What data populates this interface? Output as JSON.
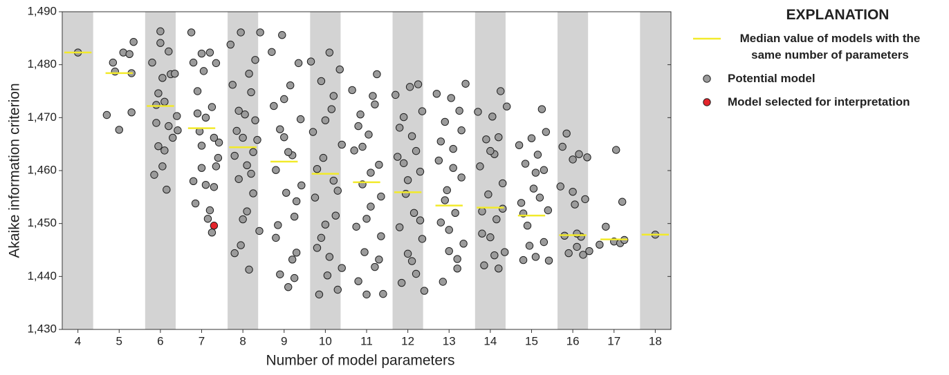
{
  "chart_data": {
    "type": "scatter",
    "xlabel": "Number of model parameters",
    "ylabel": "Akaike information criterion",
    "xlim": [
      3.62,
      18.38
    ],
    "ylim": [
      1430,
      1490
    ],
    "xticks": [
      4,
      5,
      6,
      7,
      8,
      9,
      10,
      11,
      12,
      13,
      14,
      15,
      16,
      17,
      18
    ],
    "yticks": [
      {
        "value": 1430,
        "label": "1,430"
      },
      {
        "value": 1440,
        "label": "1,440"
      },
      {
        "value": 1450,
        "label": "1,450"
      },
      {
        "value": 1460,
        "label": "1,460"
      },
      {
        "value": 1470,
        "label": "1,470"
      },
      {
        "value": 1480,
        "label": "1,480"
      },
      {
        "value": 1490,
        "label": "1,490"
      }
    ],
    "band_color": "#d3d3d3",
    "legend_title": "EXPLANATION",
    "legend": "right",
    "series": [
      {
        "name": "Median value of models with the same number of parameters",
        "marker": "line",
        "color": "#f2ea2a",
        "x": [
          4,
          5,
          6,
          7,
          8,
          9,
          10,
          11,
          12,
          13,
          14,
          15,
          16,
          17,
          18
        ],
        "values": [
          1482.3,
          1478.4,
          1472.2,
          1468,
          1464.4,
          1461.7,
          1459.4,
          1457.8,
          1455.9,
          1453.4,
          1453,
          1451.5,
          1447.8,
          1447,
          1447.9
        ]
      },
      {
        "name": "Potential model",
        "marker": "circle",
        "color": "#9b9b9b",
        "x": [
          4.0,
          4.7,
          4.85,
          4.9,
          5.0,
          5.1,
          5.25,
          5.3,
          5.35,
          5.3,
          5.8,
          5.85,
          5.9,
          5.95,
          6.0,
          6.05,
          6.1,
          6.15,
          6.2,
          6.25,
          6.3,
          6.35,
          6.4,
          6.42,
          5.95,
          6.05,
          6.1,
          6.2,
          5.9,
          6.0,
          6.75,
          6.8,
          6.85,
          6.9,
          6.95,
          7.0,
          7.05,
          7.1,
          7.15,
          7.2,
          7.25,
          7.3,
          7.35,
          7.4,
          7.42,
          6.8,
          6.9,
          7.0,
          7.1,
          7.2,
          7.25,
          7.3,
          7.35,
          7.0,
          7.7,
          7.75,
          7.8,
          7.85,
          7.9,
          7.95,
          8.0,
          8.05,
          8.1,
          8.15,
          8.2,
          8.25,
          8.3,
          8.35,
          8.4,
          8.42,
          7.8,
          7.9,
          8.0,
          8.1,
          8.2,
          8.3,
          7.95,
          8.15,
          8.25,
          8.7,
          8.75,
          8.8,
          8.85,
          8.9,
          8.95,
          9.0,
          9.05,
          9.1,
          9.15,
          9.2,
          9.25,
          9.3,
          9.35,
          9.4,
          9.42,
          8.8,
          9.0,
          9.1,
          9.2,
          9.3,
          8.9,
          9.25,
          9.65,
          9.7,
          9.75,
          9.8,
          9.85,
          9.9,
          9.95,
          10.0,
          10.05,
          10.1,
          10.15,
          10.2,
          10.25,
          10.3,
          10.35,
          10.4,
          9.8,
          10.0,
          10.1,
          10.2,
          10.3,
          9.9,
          10.4,
          10.65,
          10.7,
          10.75,
          10.8,
          10.85,
          10.9,
          10.95,
          11.0,
          11.05,
          11.1,
          11.15,
          11.2,
          11.25,
          11.3,
          11.35,
          11.4,
          10.8,
          11.0,
          11.1,
          11.2,
          11.3,
          10.9,
          11.35,
          11.7,
          11.75,
          11.8,
          11.85,
          11.9,
          11.95,
          12.0,
          12.05,
          12.1,
          12.15,
          12.2,
          12.25,
          12.3,
          12.35,
          12.4,
          11.8,
          12.0,
          12.1,
          12.2,
          12.3,
          11.9,
          12.35,
          12.7,
          12.75,
          12.8,
          12.85,
          12.9,
          12.95,
          13.0,
          13.05,
          13.1,
          13.15,
          13.2,
          13.25,
          13.3,
          13.35,
          13.4,
          12.8,
          13.0,
          13.1,
          13.2,
          13.3,
          12.9,
          13.7,
          13.75,
          13.8,
          13.85,
          13.9,
          13.95,
          14.0,
          14.05,
          14.1,
          14.15,
          14.2,
          14.25,
          14.3,
          14.35,
          14.4,
          13.8,
          14.0,
          14.1,
          14.2,
          14.3,
          14.7,
          14.75,
          14.8,
          14.85,
          14.9,
          14.95,
          15.0,
          15.05,
          15.1,
          15.15,
          15.2,
          15.25,
          15.3,
          15.35,
          15.4,
          15.42,
          14.8,
          15.1,
          15.3,
          15.7,
          15.75,
          15.8,
          15.85,
          15.9,
          16.0,
          16.05,
          16.1,
          16.15,
          16.2,
          16.25,
          16.3,
          16.35,
          16.4,
          16.0,
          16.1,
          16.65,
          16.8,
          17.0,
          17.05,
          17.15,
          17.2,
          17.25,
          18.0
        ],
        "values": [
          1482.3,
          1470.5,
          1480.4,
          1478.7,
          1467.7,
          1482.3,
          1482,
          1471,
          1484.3,
          1478.4,
          1480.4,
          1459.2,
          1469,
          1474.6,
          1486.3,
          1477.5,
          1463.8,
          1456.4,
          1482.5,
          1478.2,
          1466.2,
          1478.3,
          1470.3,
          1467.6,
          1464.6,
          1460.8,
          1473,
          1468.4,
          1472.4,
          1484.1,
          1486.1,
          1480.4,
          1453.8,
          1475,
          1467.4,
          1460.5,
          1478.8,
          1470,
          1450.9,
          1482.3,
          1472,
          1456.9,
          1480.3,
          1462.4,
          1465.3,
          1458,
          1470.8,
          1482.1,
          1457.3,
          1452.5,
          1448.3,
          1466.2,
          1460.8,
          1464.7,
          1483.8,
          1476.2,
          1444.4,
          1467.5,
          1458.4,
          1486.1,
          1450.8,
          1470.6,
          1461,
          1441.3,
          1474.8,
          1455.7,
          1480.9,
          1465.8,
          1448.6,
          1486.1,
          1462.8,
          1471.3,
          1466.2,
          1452.3,
          1459.4,
          1469.5,
          1445.9,
          1478.3,
          1463.5,
          1482.4,
          1472.2,
          1460.1,
          1449.7,
          1440.4,
          1485.6,
          1466.3,
          1455.8,
          1438,
          1476.1,
          1462.9,
          1451.3,
          1444.5,
          1480.3,
          1469.7,
          1457.2,
          1447.3,
          1473.5,
          1463.5,
          1443.2,
          1454.2,
          1467.8,
          1439.7,
          1480.6,
          1467.3,
          1454.9,
          1445.4,
          1436.6,
          1476.9,
          1462.4,
          1449.8,
          1440.2,
          1482.3,
          1471.6,
          1458.1,
          1451.5,
          1437.5,
          1479.1,
          1464.9,
          1460.3,
          1469.5,
          1443.7,
          1474.1,
          1456.2,
          1447.3,
          1441.6,
          1475.2,
          1463.8,
          1449.4,
          1439.1,
          1470.6,
          1457.4,
          1444.6,
          1436.6,
          1466.8,
          1453.2,
          1474.1,
          1441.8,
          1478.2,
          1461.1,
          1447.6,
          1436.7,
          1468.4,
          1450.9,
          1459.6,
          1472.5,
          1443.2,
          1464.5,
          1455.1,
          1474.3,
          1462.6,
          1449.3,
          1438.8,
          1470.1,
          1455.6,
          1444.3,
          1475.8,
          1466.5,
          1452,
          1440.5,
          1476.3,
          1459.8,
          1447.1,
          1437.3,
          1468.1,
          1458.2,
          1442.9,
          1463.7,
          1450.6,
          1461.4,
          1471.2,
          1474.5,
          1461.9,
          1450.2,
          1439,
          1469.2,
          1456.3,
          1444.8,
          1473.7,
          1464.1,
          1452,
          1441.5,
          1471.3,
          1458.7,
          1446.2,
          1476.4,
          1465.5,
          1448.8,
          1460.5,
          1443.3,
          1467.6,
          1454.4,
          1471.1,
          1460.8,
          1452.3,
          1442.1,
          1465.9,
          1455.5,
          1447.4,
          1470.2,
          1463.1,
          1450.8,
          1441.5,
          1475,
          1457.6,
          1444.6,
          1472.1,
          1448.1,
          1463.7,
          1444,
          1466.3,
          1452.8,
          1464.8,
          1453.9,
          1443.1,
          1461.3,
          1449.6,
          1445.8,
          1466.1,
          1456.6,
          1443.7,
          1463,
          1454.9,
          1471.6,
          1446.5,
          1467.3,
          1452.5,
          1443,
          1451.9,
          1459.6,
          1460.1,
          1457,
          1464.5,
          1447.7,
          1467,
          1444.4,
          1462.1,
          1453.6,
          1445.6,
          1463.1,
          1447.5,
          1444.1,
          1454.6,
          1462.5,
          1444.8,
          1456,
          1448.1,
          1446,
          1449.4,
          1446.6,
          1463.9,
          1446.3,
          1454.1,
          1446.9,
          1447.9
        ]
      },
      {
        "name": "Model selected for interpretation",
        "marker": "circle",
        "color": "#e3242b",
        "x": [
          7.3
        ],
        "values": [
          1449.6
        ]
      }
    ]
  }
}
